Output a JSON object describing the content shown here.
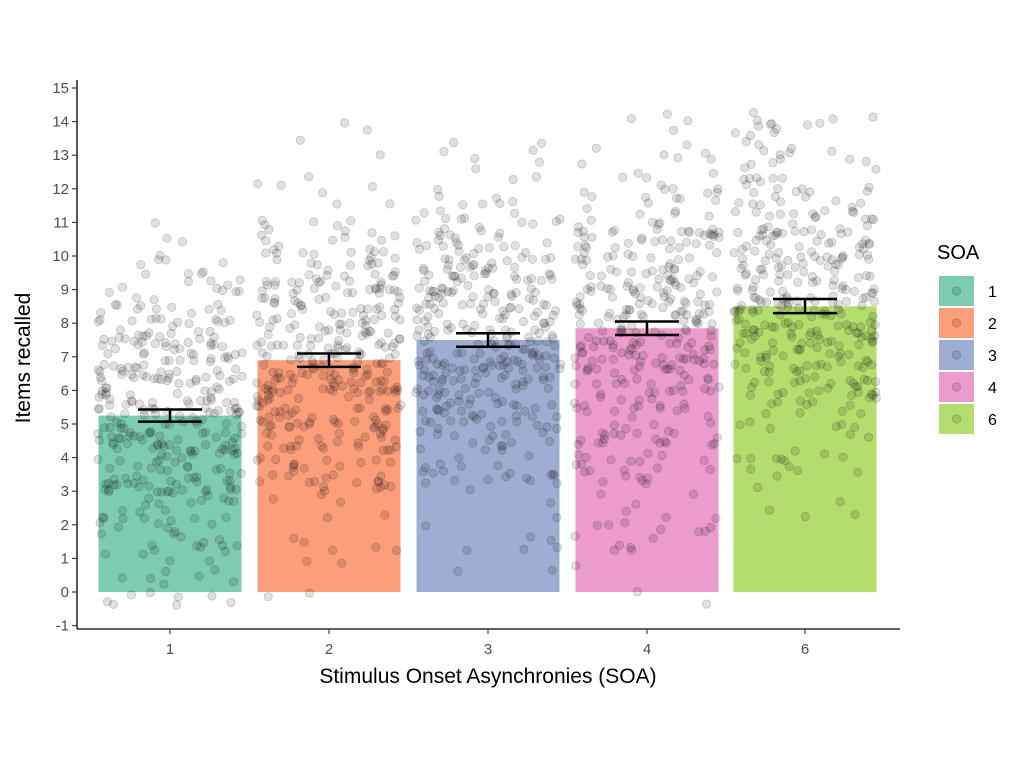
{
  "chart_data": {
    "type": "bar",
    "xlabel": "Stimulus Onset Asynchronies (SOA)",
    "ylabel": "Items recalled",
    "ylim": [
      -1,
      15
    ],
    "yticks": [
      -1,
      0,
      1,
      2,
      3,
      4,
      5,
      6,
      7,
      8,
      9,
      10,
      11,
      12,
      13,
      14,
      15
    ],
    "categories": [
      "1",
      "2",
      "3",
      "4",
      "6"
    ],
    "values": [
      5.25,
      6.9,
      7.5,
      7.85,
      8.5
    ],
    "error_low": [
      5.07,
      6.7,
      7.3,
      7.65,
      8.3
    ],
    "error_high": [
      5.43,
      7.1,
      7.7,
      8.05,
      8.72
    ],
    "colors": [
      "#66c2a5",
      "#fc8d62",
      "#8da0cb",
      "#e78ac3",
      "#a6d854"
    ],
    "point_color": "#000000",
    "grid": false,
    "legend": {
      "title": "SOA",
      "position": "right",
      "entries": [
        "1",
        "2",
        "3",
        "4",
        "6"
      ]
    },
    "jitter_points": {
      "n_per_group": 350,
      "group_means": [
        5.25,
        6.9,
        7.5,
        7.85,
        8.5
      ],
      "group_sd": [
        2.4,
        2.6,
        2.5,
        2.7,
        2.6
      ],
      "min": -0.4,
      "max": 14.4
    }
  }
}
